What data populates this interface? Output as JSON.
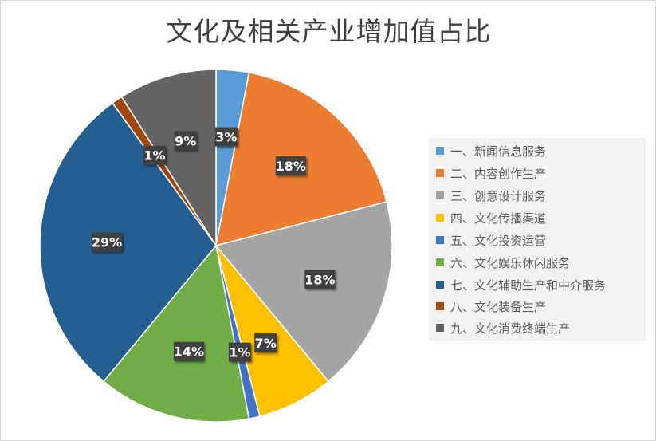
{
  "chart_data": {
    "type": "pie",
    "title": "文化及相关产业增加值占比",
    "legend_position": "right",
    "categories": [
      "一、新闻信息服务",
      "二、内容创作生产",
      "三、创意设计服务",
      "四、文化传播渠道",
      "五、文化投资运营",
      "六、文化娱乐休闲服务",
      "七、文化辅助生产和中介服务",
      "八、文化装备生产",
      "九、文化消费终端生产"
    ],
    "values": [
      3,
      18,
      18,
      7,
      1,
      14,
      29,
      1,
      9
    ],
    "data_labels": [
      "3%",
      "18%",
      "18%",
      "7%",
      "1%",
      "14%",
      "29%",
      "1%",
      "9%"
    ],
    "colors": [
      "#5b9bd5",
      "#ed7d31",
      "#a5a5a5",
      "#ffc000",
      "#4472c4",
      "#70ad47",
      "#255e91",
      "#9e480e",
      "#636363"
    ]
  }
}
